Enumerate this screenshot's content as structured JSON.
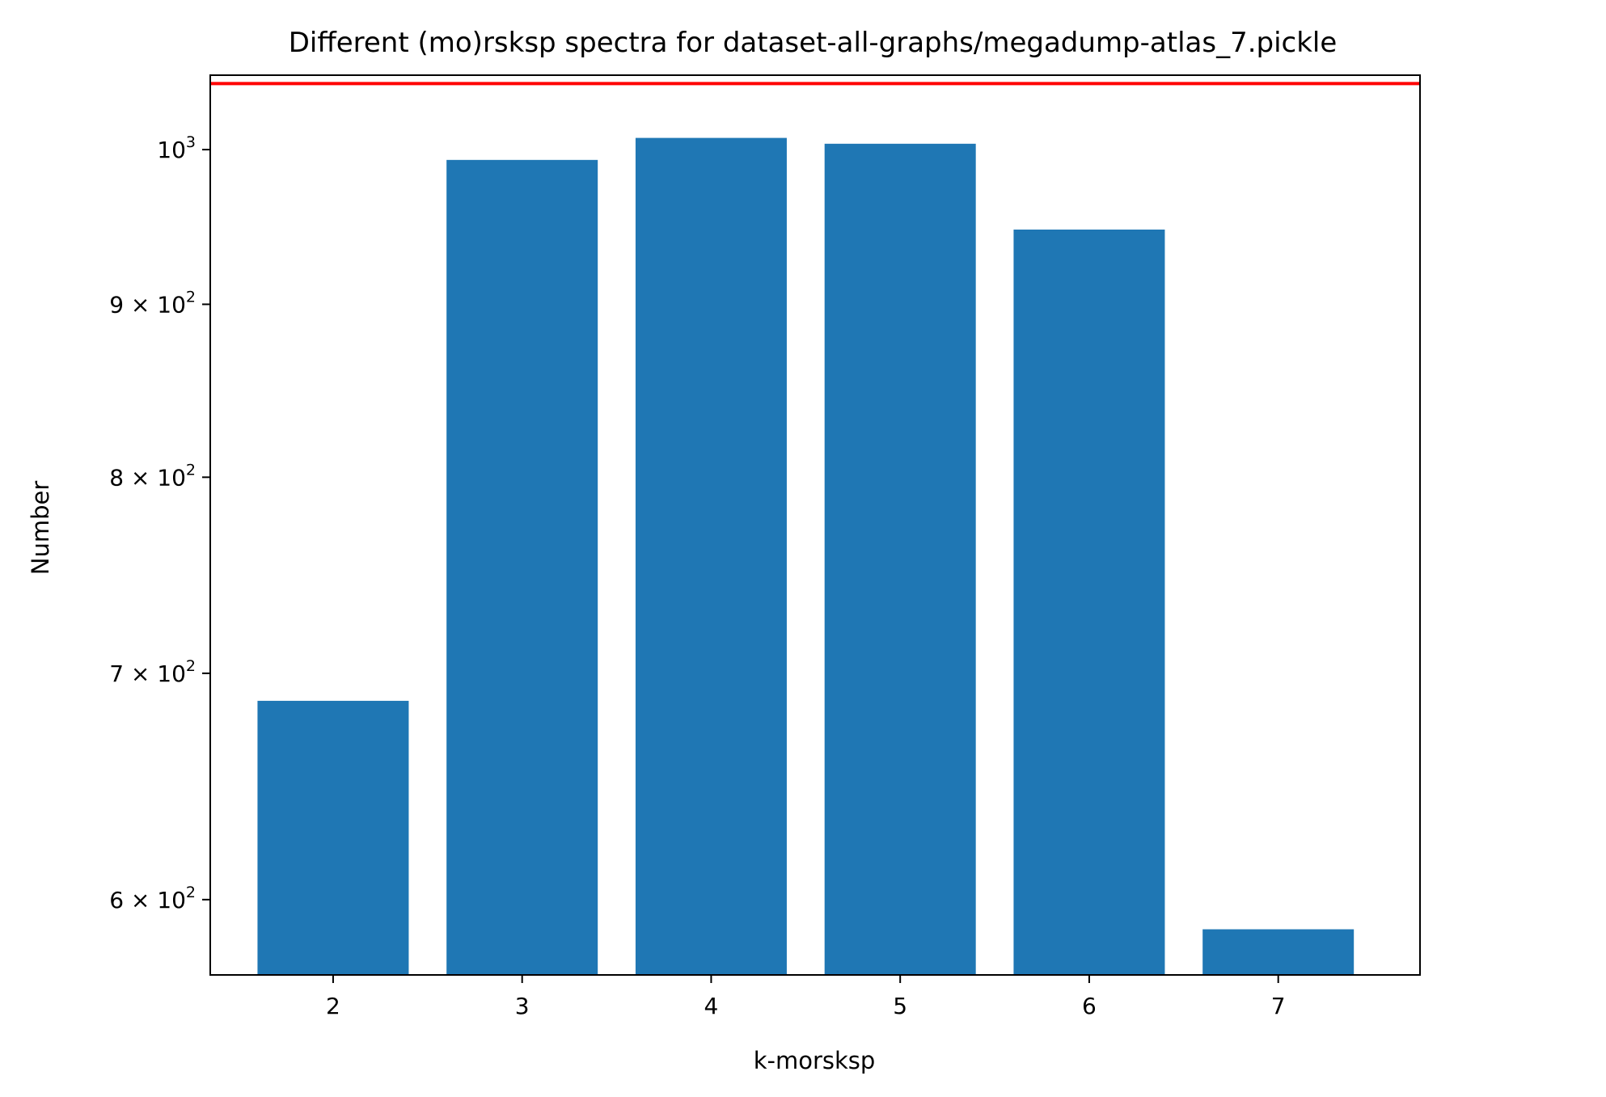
{
  "chart_data": {
    "type": "bar",
    "title": "Different (mo)rsksp spectra for dataset-all-graphs/megadump-atlas_7.pickle",
    "xlabel": "k-morsksp",
    "ylabel": "Number",
    "y_scale": "log",
    "categories": [
      "2",
      "3",
      "4",
      "5",
      "6",
      "7"
    ],
    "values": [
      687,
      993,
      1008,
      1004,
      947,
      588
    ],
    "bar_color": "#1f77b4",
    "xlim": [
      1.35,
      7.75
    ],
    "ylim": [
      570,
      1052
    ],
    "y_ticks": [
      {
        "value": 600,
        "mantissa": "6",
        "exponent": "2"
      },
      {
        "value": 700,
        "mantissa": "7",
        "exponent": "2"
      },
      {
        "value": 800,
        "mantissa": "8",
        "exponent": "2"
      },
      {
        "value": 900,
        "mantissa": "9",
        "exponent": "2"
      },
      {
        "value": 1000,
        "mantissa": "",
        "exponent": "3"
      }
    ],
    "reference_line": {
      "value": 1046,
      "color": "#ff0000"
    },
    "grid": false,
    "legend": "none"
  }
}
